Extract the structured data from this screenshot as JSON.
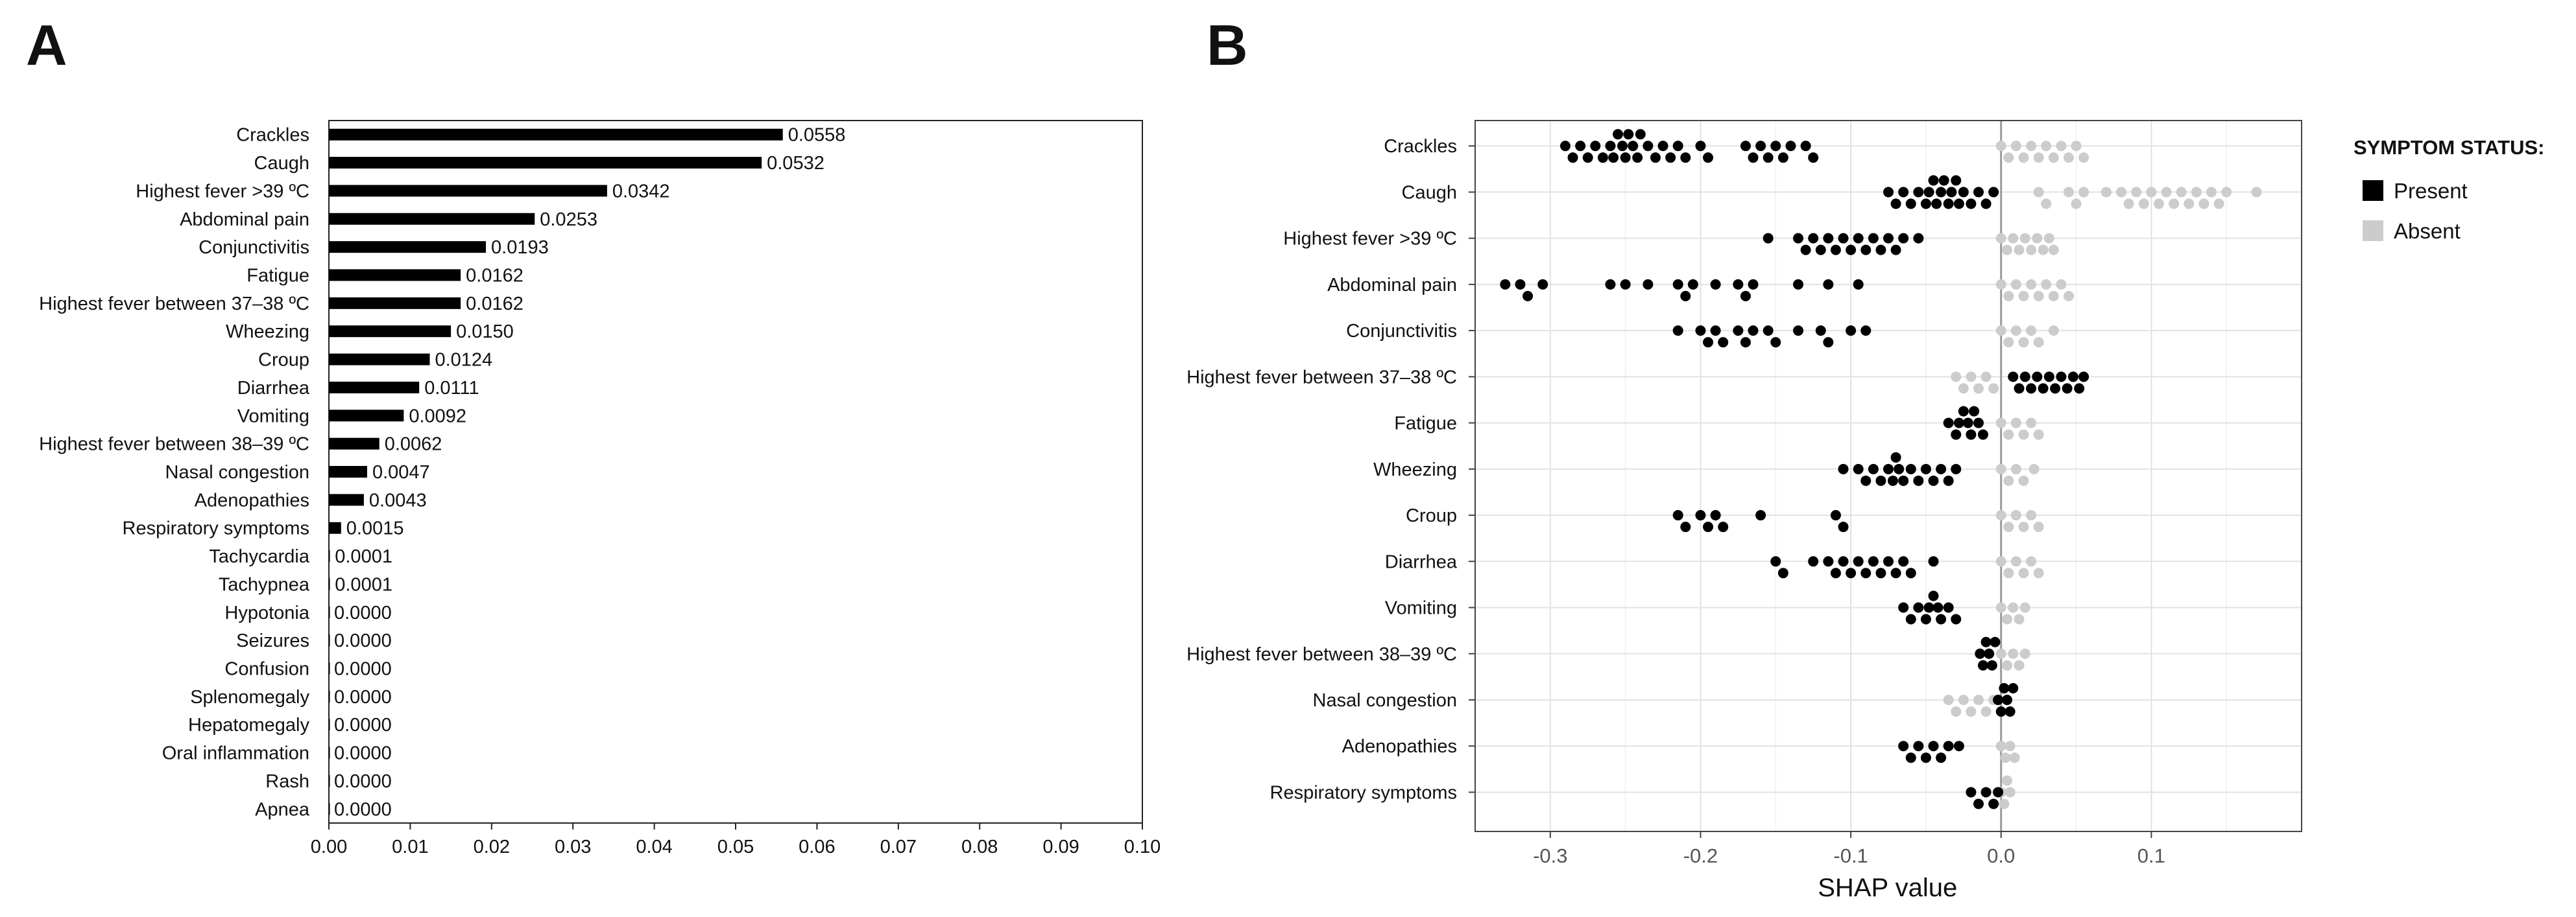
{
  "chart_data": [
    {
      "panel": "A",
      "type": "bar",
      "orientation": "horizontal",
      "categories": [
        "Crackles",
        "Caugh",
        "Highest fever >39 ºC",
        "Abdominal pain",
        "Conjunctivitis",
        "Fatigue",
        "Highest fever between 37–38 ºC",
        "Wheezing",
        "Croup",
        "Diarrhea",
        "Vomiting",
        "Highest fever between 38–39 ºC",
        "Nasal congestion",
        "Adenopathies",
        "Respiratory symptoms",
        "Tachycardia",
        "Tachypnea",
        "Hypotonia",
        "Seizures",
        "Confusion",
        "Splenomegaly",
        "Hepatomegaly",
        "Oral inflammation",
        "Rash",
        "Apnea"
      ],
      "values": [
        0.0558,
        0.0532,
        0.0342,
        0.0253,
        0.0193,
        0.0162,
        0.0162,
        0.015,
        0.0124,
        0.0111,
        0.0092,
        0.0062,
        0.0047,
        0.0043,
        0.0015,
        0.0001,
        0.0001,
        0.0,
        0.0,
        0.0,
        0.0,
        0.0,
        0.0,
        0.0,
        0.0
      ],
      "value_labels": [
        "0.0558",
        "0.0532",
        "0.0342",
        "0.0253",
        "0.0193",
        "0.0162",
        "0.0162",
        "0.0150",
        "0.0124",
        "0.0111",
        "0.0092",
        "0.0062",
        "0.0047",
        "0.0043",
        "0.0015",
        "0.0001",
        "0.0001",
        "0.0000",
        "0.0000",
        "0.0000",
        "0.0000",
        "0.0000",
        "0.0000",
        "0.0000",
        "0.0000"
      ],
      "xlim": [
        0,
        0.1
      ],
      "xticks": [
        "0.00",
        "0.01",
        "0.02",
        "0.03",
        "0.04",
        "0.05",
        "0.06",
        "0.07",
        "0.08",
        "0.09",
        "0.10"
      ],
      "title": "",
      "xlabel": "",
      "ylabel": "",
      "bar_color": "#000000"
    },
    {
      "panel": "B",
      "type": "beeswarm",
      "categories": [
        "Crackles",
        "Caugh",
        "Highest fever >39 ºC",
        "Abdominal pain",
        "Conjunctivitis",
        "Highest fever between 37–38 ºC",
        "Fatigue",
        "Wheezing",
        "Croup",
        "Diarrhea",
        "Vomiting",
        "Highest fever between 38–39 ºC",
        "Nasal congestion",
        "Adenopathies",
        "Respiratory symptoms"
      ],
      "xlabel": "SHAP value",
      "xlim": [
        -0.35,
        0.2
      ],
      "xticks": [
        -0.3,
        -0.2,
        -0.1,
        0.0,
        0.1
      ],
      "xtick_labels": [
        "-0.3",
        "-0.2",
        "-0.1",
        "0.0",
        "0.1"
      ],
      "grid": true,
      "series": [
        {
          "name": "Present",
          "color": "#000000",
          "points": [
            [
              -0.29,
              -0.285,
              -0.28,
              -0.275,
              -0.27,
              -0.265,
              -0.26,
              -0.258,
              -0.255,
              -0.252,
              -0.25,
              -0.248,
              -0.245,
              -0.242,
              -0.24,
              -0.235,
              -0.23,
              -0.225,
              -0.22,
              -0.215,
              -0.21,
              -0.2,
              -0.195,
              -0.17,
              -0.165,
              -0.16,
              -0.155,
              -0.15,
              -0.145,
              -0.14,
              -0.13,
              -0.125
            ],
            [
              -0.075,
              -0.07,
              -0.065,
              -0.06,
              -0.055,
              -0.05,
              -0.048,
              -0.045,
              -0.043,
              -0.04,
              -0.038,
              -0.035,
              -0.033,
              -0.03,
              -0.028,
              -0.025,
              -0.02,
              -0.015,
              -0.01,
              -0.005
            ],
            [
              -0.155,
              -0.135,
              -0.13,
              -0.125,
              -0.12,
              -0.115,
              -0.11,
              -0.105,
              -0.1,
              -0.095,
              -0.09,
              -0.085,
              -0.08,
              -0.075,
              -0.07,
              -0.065,
              -0.055
            ],
            [
              -0.33,
              -0.32,
              -0.315,
              -0.305,
              -0.26,
              -0.25,
              -0.235,
              -0.215,
              -0.21,
              -0.205,
              -0.19,
              -0.175,
              -0.17,
              -0.165,
              -0.135,
              -0.115,
              -0.095
            ],
            [
              -0.215,
              -0.2,
              -0.195,
              -0.19,
              -0.185,
              -0.175,
              -0.17,
              -0.165,
              -0.155,
              -0.15,
              -0.135,
              -0.12,
              -0.115,
              -0.1,
              -0.09
            ],
            [
              0.008,
              0.012,
              0.016,
              0.02,
              0.024,
              0.028,
              0.032,
              0.036,
              0.04,
              0.044,
              0.048,
              0.052,
              0.055
            ],
            [
              -0.035,
              -0.03,
              -0.028,
              -0.025,
              -0.022,
              -0.02,
              -0.018,
              -0.015,
              -0.012
            ],
            [
              -0.105,
              -0.095,
              -0.09,
              -0.085,
              -0.08,
              -0.075,
              -0.072,
              -0.07,
              -0.068,
              -0.065,
              -0.06,
              -0.055,
              -0.05,
              -0.045,
              -0.04,
              -0.035,
              -0.03
            ],
            [
              -0.215,
              -0.21,
              -0.2,
              -0.195,
              -0.19,
              -0.185,
              -0.16,
              -0.11,
              -0.105
            ],
            [
              -0.15,
              -0.145,
              -0.125,
              -0.115,
              -0.11,
              -0.105,
              -0.1,
              -0.095,
              -0.09,
              -0.085,
              -0.08,
              -0.075,
              -0.07,
              -0.065,
              -0.06,
              -0.045
            ],
            [
              -0.065,
              -0.06,
              -0.055,
              -0.05,
              -0.048,
              -0.045,
              -0.042,
              -0.04,
              -0.035,
              -0.03
            ],
            [
              -0.014,
              -0.012,
              -0.01,
              -0.008,
              -0.006,
              -0.004
            ],
            [
              -0.002,
              0.0,
              0.002,
              0.004,
              0.006,
              0.008
            ],
            [
              -0.065,
              -0.06,
              -0.055,
              -0.05,
              -0.045,
              -0.04,
              -0.035,
              -0.028
            ],
            [
              -0.02,
              -0.015,
              -0.01,
              -0.005,
              -0.002
            ]
          ]
        },
        {
          "name": "Absent",
          "color": "#cccccc",
          "points": [
            [
              0.0,
              0.005,
              0.01,
              0.015,
              0.02,
              0.025,
              0.03,
              0.035,
              0.04,
              0.045,
              0.05,
              0.055
            ],
            [
              0.025,
              0.03,
              0.045,
              0.05,
              0.055,
              0.07,
              0.08,
              0.085,
              0.09,
              0.095,
              0.1,
              0.105,
              0.11,
              0.115,
              0.12,
              0.125,
              0.13,
              0.135,
              0.14,
              0.145,
              0.15,
              0.17
            ],
            [
              0.0,
              0.004,
              0.008,
              0.012,
              0.016,
              0.02,
              0.024,
              0.028,
              0.032,
              0.035
            ],
            [
              0.0,
              0.005,
              0.01,
              0.015,
              0.02,
              0.025,
              0.03,
              0.035,
              0.04,
              0.045
            ],
            [
              0.0,
              0.005,
              0.01,
              0.015,
              0.02,
              0.025,
              0.035
            ],
            [
              -0.03,
              -0.025,
              -0.02,
              -0.015,
              -0.01,
              -0.005
            ],
            [
              0.0,
              0.005,
              0.01,
              0.015,
              0.02,
              0.025
            ],
            [
              0.0,
              0.005,
              0.01,
              0.015,
              0.022
            ],
            [
              0.0,
              0.005,
              0.01,
              0.015,
              0.02,
              0.025
            ],
            [
              0.0,
              0.005,
              0.01,
              0.015,
              0.02,
              0.025
            ],
            [
              0.0,
              0.004,
              0.008,
              0.012,
              0.016
            ],
            [
              0.0,
              0.004,
              0.008,
              0.012,
              0.016
            ],
            [
              -0.035,
              -0.03,
              -0.025,
              -0.02,
              -0.015,
              -0.01,
              -0.005
            ],
            [
              0.0,
              0.003,
              0.006,
              0.009
            ],
            [
              0.0,
              0.002,
              0.004,
              0.006
            ]
          ]
        }
      ],
      "legend": {
        "title": "SYMPTOM STATUS:",
        "items": [
          "Present",
          "Absent"
        ],
        "position": "right"
      }
    }
  ]
}
